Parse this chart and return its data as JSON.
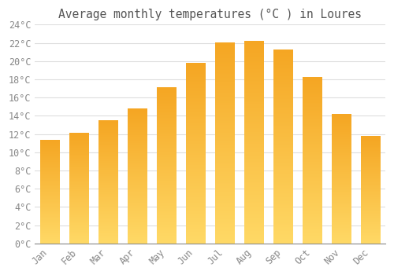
{
  "title": "Average monthly temperatures (°C ) in Loures",
  "months": [
    "Jan",
    "Feb",
    "Mar",
    "Apr",
    "May",
    "Jun",
    "Jul",
    "Aug",
    "Sep",
    "Oct",
    "Nov",
    "Dec"
  ],
  "values": [
    11.3,
    12.1,
    13.5,
    14.8,
    17.1,
    19.8,
    22.0,
    22.2,
    21.3,
    18.2,
    14.2,
    11.8
  ],
  "bar_color_top": "#F5A623",
  "bar_color_bottom": "#FFD966",
  "background_color": "#FFFFFF",
  "grid_color": "#DDDDDD",
  "ylim": [
    0,
    24
  ],
  "yticks": [
    0,
    2,
    4,
    6,
    8,
    10,
    12,
    14,
    16,
    18,
    20,
    22,
    24
  ],
  "ytick_labels": [
    "0°C",
    "2°C",
    "4°C",
    "6°C",
    "8°C",
    "10°C",
    "12°C",
    "14°C",
    "16°C",
    "18°C",
    "20°C",
    "22°C",
    "24°C"
  ],
  "title_fontsize": 10.5,
  "tick_fontsize": 8.5,
  "font_family": "monospace"
}
